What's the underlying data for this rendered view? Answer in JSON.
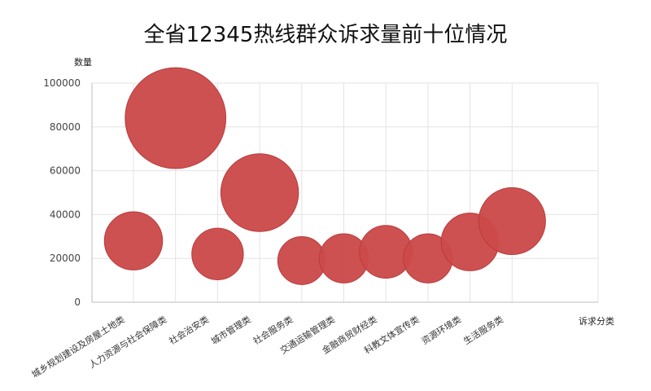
{
  "chart_data": {
    "type": "bubble",
    "title": "全省12345热线群众诉求量前十位情况",
    "ylabel": "数量",
    "xlabel": "诉求分类",
    "ylim": [
      0,
      100000
    ],
    "yticks": [
      0,
      20000,
      40000,
      60000,
      80000,
      100000
    ],
    "grid": true,
    "legend": "none",
    "color": "#cc4a4a",
    "categories": [
      "城乡规划建设及房屋土地类",
      "人力资源与社会保障类",
      "社会治安类",
      "城市管理类",
      "社会服务类",
      "交通运输管理类",
      "金融商贸财经类",
      "科教文体宣传类",
      "资源环境类",
      "生活服务类"
    ],
    "values": [
      28000,
      84000,
      22000,
      50000,
      19000,
      20000,
      23000,
      20000,
      27500,
      37000
    ]
  }
}
